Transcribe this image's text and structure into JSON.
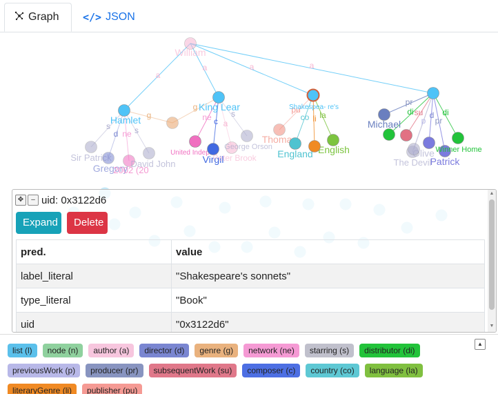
{
  "tabs": {
    "graph_label": "Graph",
    "json_label": "JSON"
  },
  "graph": {
    "edges": [
      [
        "william",
        "hamlet"
      ],
      [
        "william",
        "kinglear"
      ],
      [
        "william",
        "sonnets"
      ],
      [
        "william",
        "bignode"
      ],
      [
        "hamlet",
        "orange1"
      ],
      [
        "kinglear",
        "orange1"
      ],
      [
        "hamlet",
        "sirpatrick"
      ],
      [
        "hamlet",
        "gregory"
      ],
      [
        "hamlet",
        "pink1"
      ],
      [
        "hamlet",
        "davidjohn"
      ],
      [
        "kinglear",
        "unitedind"
      ],
      [
        "kinglear",
        "virgil"
      ],
      [
        "kinglear",
        "brook"
      ],
      [
        "kinglear",
        "orson"
      ],
      [
        "sonnets",
        "thomas"
      ],
      [
        "sonnets",
        "england"
      ],
      [
        "sonnets",
        "english"
      ],
      [
        "sonnets",
        "orange2"
      ],
      [
        "bignode",
        "michael"
      ],
      [
        "bignode",
        "green1"
      ],
      [
        "bignode",
        "red1"
      ],
      [
        "bignode",
        "olive"
      ],
      [
        "bignode",
        "patrick"
      ],
      [
        "bignode",
        "purple1"
      ],
      [
        "bignode",
        "devil"
      ],
      [
        "bignode",
        "winner"
      ]
    ],
    "nodes": [
      {
        "id": "william",
        "label": "William",
        "color": "#f7b6d2",
        "faded": true
      },
      {
        "id": "hamlet",
        "label": "Hamlet",
        "color": "#4fc3f7"
      },
      {
        "id": "kinglear",
        "label": "King Lear",
        "color": "#4fc3f7"
      },
      {
        "id": "sonnets",
        "label": "Shakespea- re's",
        "color": "#4fc3f7",
        "selected": true
      },
      {
        "id": "bignode",
        "label": "",
        "color": "#4fc3f7"
      },
      {
        "id": "orange1",
        "label": "",
        "color": "#e9a36b",
        "faded": true
      },
      {
        "id": "sirpatrick",
        "label": "Sir Patrick",
        "color": "#aaaacc",
        "faded": true
      },
      {
        "id": "gregory",
        "label": "Gregory",
        "color": "#7a86d1",
        "faded": true
      },
      {
        "id": "pink1",
        "label": "2002 (20",
        "color": "#f06fc0",
        "faded": true
      },
      {
        "id": "davidjohn",
        "label": "David John",
        "color": "#aaaacc",
        "faded": true
      },
      {
        "id": "unitedind",
        "label": "United Indepen",
        "color": "#f06fc0"
      },
      {
        "id": "virgil",
        "label": "Virgil",
        "color": "#4169e1"
      },
      {
        "id": "brook",
        "label": "Peter Brook",
        "color": "#f7b6d2",
        "faded": true
      },
      {
        "id": "orson",
        "label": "George Orson",
        "color": "#aaaacc",
        "faded": true
      },
      {
        "id": "thomas",
        "label": "Thomas",
        "color": "#f28b7d",
        "faded": true
      },
      {
        "id": "england",
        "label": "England",
        "color": "#4fc3d0"
      },
      {
        "id": "english",
        "label": "English",
        "color": "#7cc43f"
      },
      {
        "id": "orange2",
        "label": "",
        "color": "#f08a24"
      },
      {
        "id": "michael",
        "label": "Michael",
        "color": "#6a7fbf"
      },
      {
        "id": "green1",
        "label": "",
        "color": "#22c33a"
      },
      {
        "id": "red1",
        "label": "",
        "color": "#e27183"
      },
      {
        "id": "olive",
        "label": "Olive",
        "color": "#aaaacc",
        "faded": true
      },
      {
        "id": "purple1",
        "label": "",
        "color": "#7b7bde"
      },
      {
        "id": "patrick",
        "label": "Patrick",
        "color": "#7b7bde"
      },
      {
        "id": "devil",
        "label": "The Devil",
        "color": "#aaaacc",
        "faded": true
      },
      {
        "id": "winner",
        "label": "Winner Home",
        "color": "#22c33a"
      }
    ]
  },
  "panel": {
    "uid_text": "uid: 0x3122d6",
    "expand_label": "Expand",
    "delete_label": "Delete",
    "headers": {
      "pred": "pred.",
      "value": "value"
    },
    "rows": [
      {
        "pred": "label_literal",
        "value": "\"Shakespeare's sonnets\""
      },
      {
        "pred": "type_literal",
        "value": "\"Book\""
      },
      {
        "pred": "uid",
        "value": "\"0x3122d6\""
      }
    ]
  },
  "legend": [
    {
      "label": "list (l)",
      "color": "#5bc0eb"
    },
    {
      "label": "node (n)",
      "color": "#8fd19e"
    },
    {
      "label": "author (a)",
      "color": "#f7c6de"
    },
    {
      "label": "director (d)",
      "color": "#7a86d1"
    },
    {
      "label": "genre (g)",
      "color": "#e9b27e"
    },
    {
      "label": "network (ne)",
      "color": "#f59ad4"
    },
    {
      "label": "starring (s)",
      "color": "#c0c0cc"
    },
    {
      "label": "distributor (di)",
      "color": "#22c33a"
    },
    {
      "label": "previousWork (p)",
      "color": "#b8b8e8"
    },
    {
      "label": "producer (pr)",
      "color": "#8894c0"
    },
    {
      "label": "subsequentWork (su)",
      "color": "#e0788a"
    },
    {
      "label": "composer (c)",
      "color": "#4d6fe3"
    },
    {
      "label": "country (co)",
      "color": "#5ec8d4"
    },
    {
      "label": "language (la)",
      "color": "#80c040"
    },
    {
      "label": "literaryGenre (li)",
      "color": "#f08a24"
    },
    {
      "label": "publisher (pu)",
      "color": "#f59a94"
    }
  ]
}
